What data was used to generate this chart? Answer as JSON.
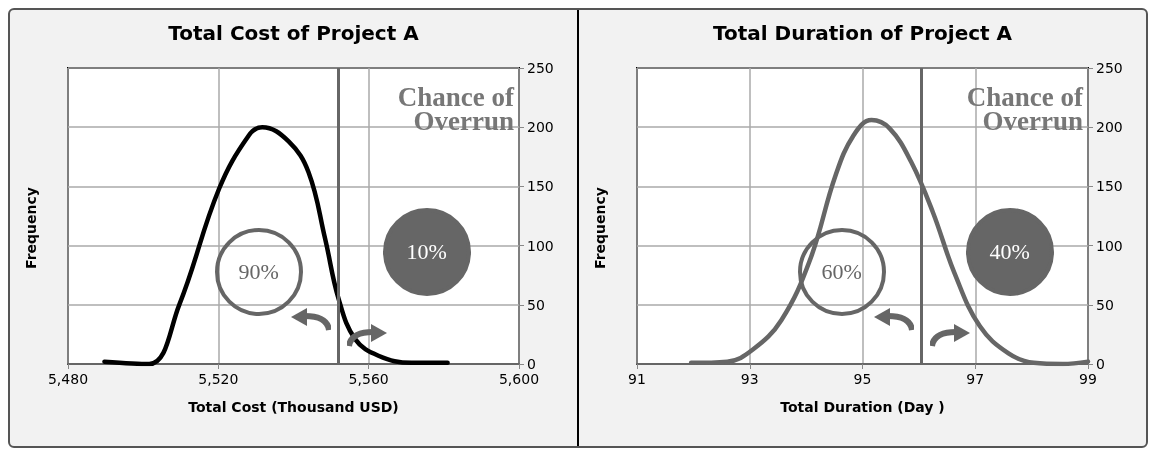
{
  "chart_data": [
    {
      "type": "line",
      "title": "Total Cost of Project A",
      "xlabel": "Total Cost (Thousand USD)",
      "ylabel": "Frequency",
      "x": [
        5489.7,
        5501.6,
        5509.6,
        5520.2,
        5528.1,
        5531.7,
        5538.7,
        5544,
        5548.4,
        5552,
        5556.4,
        5562.6,
        5571.4,
        5581
      ],
      "series": [
        {
          "color": "#000000",
          "values": [
            2,
            0,
            50,
            148,
            193,
            200,
            188,
            162,
            106,
            55,
            21,
            7,
            1,
            1
          ]
        }
      ],
      "xlim": [
        5480,
        5600
      ],
      "xticks": [
        {
          "value": 5480,
          "label": "5,480"
        },
        {
          "value": 5520,
          "label": "5,520"
        },
        {
          "value": 5560,
          "label": "5,560"
        },
        {
          "value": 5600,
          "label": "5,600"
        }
      ],
      "ylim": [
        0,
        250
      ],
      "yticks": [
        0,
        50,
        100,
        150,
        200,
        250
      ],
      "grid": true,
      "marker": "none",
      "line_style": "solid",
      "ref_lines": [
        {
          "axis": "x",
          "value": 5552,
          "color": "#666666"
        }
      ],
      "annotations": [
        "Chance of Overrun",
        "90%",
        "10%"
      ]
    },
    {
      "type": "line",
      "title": "Total Duration of Project A",
      "xlabel": "Total Duration (Day )",
      "ylabel": "Frequency",
      "x": [
        91.96,
        92.6,
        93.05,
        93.56,
        94.07,
        94.52,
        94.84,
        95.16,
        95.48,
        95.86,
        96.25,
        96.63,
        97.08,
        97.59,
        98.04,
        98.55,
        99
      ],
      "series": [
        {
          "color": "#666666",
          "values": [
            1,
            2,
            12,
            37,
            88,
            159,
            193,
            206,
            199,
            171,
            128,
            77,
            32,
            9,
            1,
            0,
            2
          ]
        }
      ],
      "xlim": [
        91,
        99
      ],
      "xticks": [
        91,
        93,
        95,
        97,
        99
      ],
      "ylim": [
        0,
        250
      ],
      "yticks": [
        0,
        50,
        100,
        150,
        200,
        250
      ],
      "grid": true,
      "marker": "none",
      "line_style": "solid",
      "ref_lines": [
        {
          "axis": "x",
          "value": 96.05,
          "color": "#666666"
        }
      ],
      "annotations": [
        "Chance of Overrun",
        "60%",
        "40%"
      ]
    }
  ]
}
